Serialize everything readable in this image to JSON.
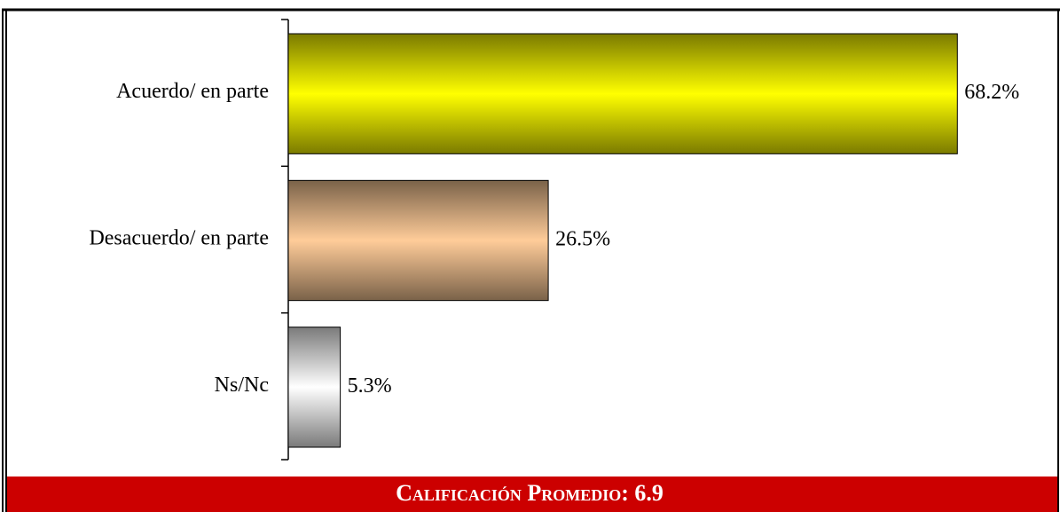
{
  "chart_data": {
    "type": "bar",
    "orientation": "horizontal",
    "categories": [
      "Acuerdo/ en parte",
      "Desacuerdo/ en parte",
      "Ns/Nc"
    ],
    "values": [
      68.2,
      26.5,
      5.3
    ],
    "value_labels": [
      "68.2%",
      "26.5%",
      "5.3%"
    ],
    "colors": [
      "#ffff00",
      "#ffcc99",
      "#ffffff"
    ],
    "footer": "Calificación Promedio: 6.9"
  }
}
